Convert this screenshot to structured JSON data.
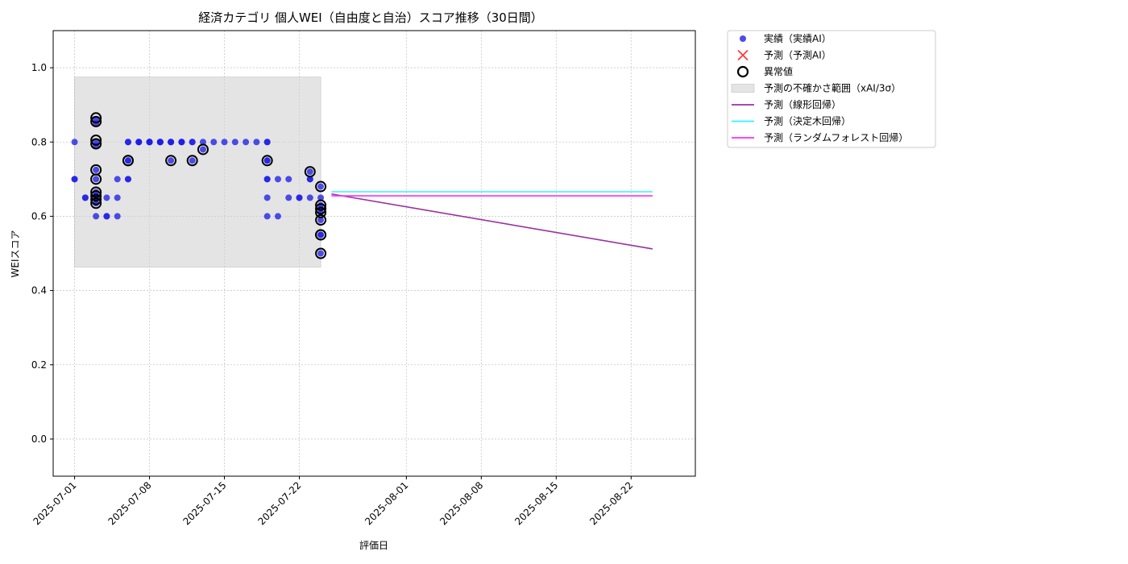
{
  "chart_data": {
    "type": "scatter",
    "title": "経済カテゴリ 個人WEI（自由度と自治）スコア推移（30日間）",
    "xlabel": "評価日",
    "ylabel": "WEIスコア",
    "xlim": [
      "2025-06-29",
      "2025-08-28"
    ],
    "ylim": [
      -0.1,
      1.1
    ],
    "yticks": [
      0.0,
      0.2,
      0.4,
      0.6,
      0.8,
      1.0
    ],
    "ytick_labels": [
      "0.0",
      "0.2",
      "0.4",
      "0.6",
      "0.8",
      "1.0"
    ],
    "xticks": [
      "2025-07-01",
      "2025-07-08",
      "2025-07-15",
      "2025-07-22",
      "2025-08-01",
      "2025-08-08",
      "2025-08-15",
      "2025-08-22"
    ],
    "grid": true,
    "legend_position": "outside-top-right",
    "uncertainty_band": {
      "name": "予測の不確かさ範囲（xAI/3σ）",
      "x_start": "2025-07-01",
      "x_end": "2025-07-24",
      "y_low": 0.463,
      "y_high": 0.975,
      "color": "#d3d3d3"
    },
    "series": [
      {
        "name": "実績（実績AI）",
        "kind": "scatter",
        "color": "#1f1fe6",
        "points": [
          [
            "2025-07-01",
            0.8
          ],
          [
            "2025-07-01",
            0.7
          ],
          [
            "2025-07-01",
            0.7
          ],
          [
            "2025-07-02",
            0.65
          ],
          [
            "2025-07-02",
            0.65
          ],
          [
            "2025-07-03",
            0.65
          ],
          [
            "2025-07-03",
            0.6
          ],
          [
            "2025-07-03",
            0.86
          ],
          [
            "2025-07-03",
            0.85
          ],
          [
            "2025-07-03",
            0.8
          ],
          [
            "2025-07-03",
            0.79
          ],
          [
            "2025-07-03",
            0.725
          ],
          [
            "2025-07-03",
            0.7
          ],
          [
            "2025-07-03",
            0.665
          ],
          [
            "2025-07-03",
            0.655
          ],
          [
            "2025-07-03",
            0.645
          ],
          [
            "2025-07-03",
            0.635
          ],
          [
            "2025-07-04",
            0.65
          ],
          [
            "2025-07-04",
            0.6
          ],
          [
            "2025-07-04",
            0.6
          ],
          [
            "2025-07-05",
            0.7
          ],
          [
            "2025-07-05",
            0.65
          ],
          [
            "2025-07-05",
            0.6
          ],
          [
            "2025-07-06",
            0.75
          ],
          [
            "2025-07-06",
            0.7
          ],
          [
            "2025-07-06",
            0.8
          ],
          [
            "2025-07-06",
            0.75
          ],
          [
            "2025-07-06",
            0.7
          ],
          [
            "2025-07-06",
            0.8
          ],
          [
            "2025-07-07",
            0.8
          ],
          [
            "2025-07-07",
            0.8
          ],
          [
            "2025-07-07",
            0.8
          ],
          [
            "2025-07-08",
            0.8
          ],
          [
            "2025-07-08",
            0.8
          ],
          [
            "2025-07-08",
            0.8
          ],
          [
            "2025-07-08",
            0.8
          ],
          [
            "2025-07-09",
            0.8
          ],
          [
            "2025-07-09",
            0.8
          ],
          [
            "2025-07-09",
            0.8
          ],
          [
            "2025-07-09",
            0.8
          ],
          [
            "2025-07-10",
            0.8
          ],
          [
            "2025-07-10",
            0.8
          ],
          [
            "2025-07-10",
            0.75
          ],
          [
            "2025-07-10",
            0.8
          ],
          [
            "2025-07-11",
            0.8
          ],
          [
            "2025-07-11",
            0.8
          ],
          [
            "2025-07-11",
            0.8
          ],
          [
            "2025-07-12",
            0.8
          ],
          [
            "2025-07-12",
            0.75
          ],
          [
            "2025-07-12",
            0.8
          ],
          [
            "2025-07-13",
            0.8
          ],
          [
            "2025-07-13",
            0.78
          ],
          [
            "2025-07-14",
            0.8
          ],
          [
            "2025-07-15",
            0.8
          ],
          [
            "2025-07-16",
            0.8
          ],
          [
            "2025-07-17",
            0.8
          ],
          [
            "2025-07-18",
            0.8
          ],
          [
            "2025-07-19",
            0.8
          ],
          [
            "2025-07-19",
            0.8
          ],
          [
            "2025-07-19",
            0.75
          ],
          [
            "2025-07-19",
            0.75
          ],
          [
            "2025-07-19",
            0.7
          ],
          [
            "2025-07-19",
            0.7
          ],
          [
            "2025-07-19",
            0.65
          ],
          [
            "2025-07-19",
            0.6
          ],
          [
            "2025-07-20",
            0.7
          ],
          [
            "2025-07-20",
            0.6
          ],
          [
            "2025-07-21",
            0.7
          ],
          [
            "2025-07-21",
            0.65
          ],
          [
            "2025-07-22",
            0.65
          ],
          [
            "2025-07-22",
            0.65
          ],
          [
            "2025-07-23",
            0.72
          ],
          [
            "2025-07-23",
            0.7
          ],
          [
            "2025-07-23",
            0.7
          ],
          [
            "2025-07-23",
            0.65
          ],
          [
            "2025-07-24",
            0.55
          ],
          [
            "2025-07-24",
            0.5
          ],
          [
            "2025-07-24",
            0.63
          ],
          [
            "2025-07-24",
            0.62
          ],
          [
            "2025-07-24",
            0.61
          ],
          [
            "2025-07-24",
            0.59
          ],
          [
            "2025-07-24",
            0.55
          ],
          [
            "2025-07-24",
            0.68
          ],
          [
            "2025-07-24",
            0.65
          ]
        ]
      },
      {
        "name": "予測（予測AI）",
        "kind": "marker-x",
        "color": "#ff3b3b",
        "points": []
      },
      {
        "name": "異常値",
        "kind": "outlier-ring",
        "color": "#000000",
        "points": [
          [
            "2025-07-03",
            0.865
          ],
          [
            "2025-07-03",
            0.855
          ],
          [
            "2025-07-03",
            0.805
          ],
          [
            "2025-07-03",
            0.795
          ],
          [
            "2025-07-03",
            0.725
          ],
          [
            "2025-07-03",
            0.7
          ],
          [
            "2025-07-03",
            0.665
          ],
          [
            "2025-07-03",
            0.655
          ],
          [
            "2025-07-03",
            0.645
          ],
          [
            "2025-07-03",
            0.635
          ],
          [
            "2025-07-06",
            0.75
          ],
          [
            "2025-07-06",
            0.75
          ],
          [
            "2025-07-10",
            0.75
          ],
          [
            "2025-07-12",
            0.75
          ],
          [
            "2025-07-13",
            0.78
          ],
          [
            "2025-07-19",
            0.75
          ],
          [
            "2025-07-23",
            0.72
          ],
          [
            "2025-07-24",
            0.68
          ],
          [
            "2025-07-24",
            0.63
          ],
          [
            "2025-07-24",
            0.62
          ],
          [
            "2025-07-24",
            0.61
          ],
          [
            "2025-07-24",
            0.59
          ],
          [
            "2025-07-24",
            0.55
          ],
          [
            "2025-07-24",
            0.55
          ],
          [
            "2025-07-24",
            0.5
          ]
        ]
      },
      {
        "name": "予測（線形回帰）",
        "kind": "line",
        "color": "#9b30a0",
        "points": [
          [
            "2025-07-25",
            0.66
          ],
          [
            "2025-08-24",
            0.512
          ]
        ]
      },
      {
        "name": "予測（決定木回帰）",
        "kind": "line",
        "color": "#2ff5ff",
        "points": [
          [
            "2025-07-25",
            0.666
          ],
          [
            "2025-08-24",
            0.666
          ]
        ]
      },
      {
        "name": "予測（ランダムフォレスト回帰）",
        "kind": "line",
        "color": "#ff2bff",
        "points": [
          [
            "2025-07-25",
            0.655
          ],
          [
            "2025-08-24",
            0.655
          ]
        ]
      }
    ]
  }
}
